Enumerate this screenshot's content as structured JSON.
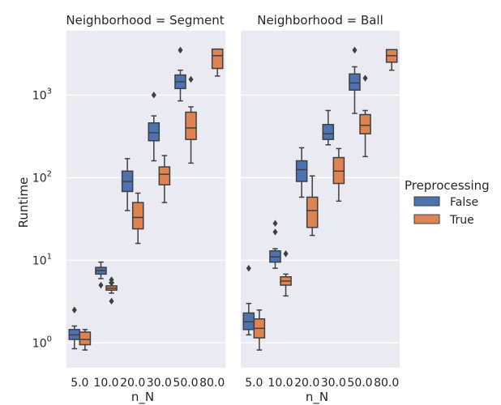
{
  "chart_data": {
    "type": "boxplot",
    "facet_titles": [
      "Neighborhood = Segment",
      "Neighborhood = Ball"
    ],
    "xlabel": "n_N",
    "ylabel": "Runtime",
    "yscale": "log",
    "ylim": [
      0.5,
      6000
    ],
    "y_tick_labels": [
      "10^0",
      "10^1",
      "10^2",
      "10^3"
    ],
    "categories": [
      "5.0",
      "10.0",
      "20.0",
      "30.0",
      "50.0",
      "80.0"
    ],
    "legend": {
      "title": "Preprocessing",
      "placement": "center-right",
      "entries": [
        {
          "label": "False",
          "color": "#4c72b0"
        },
        {
          "label": "True",
          "color": "#dd8452"
        }
      ]
    },
    "panels": [
      {
        "name": "Segment",
        "boxes": [
          {
            "category": "5.0",
            "group": "False",
            "whislo": 0.85,
            "q1": 1.1,
            "med": 1.25,
            "q3": 1.45,
            "whishi": 1.6,
            "fliers": [
              2.5
            ]
          },
          {
            "category": "5.0",
            "group": "True",
            "whislo": 0.82,
            "q1": 0.95,
            "med": 1.1,
            "q3": 1.35,
            "whishi": 1.45,
            "fliers": []
          },
          {
            "category": "10.0",
            "group": "False",
            "whislo": 6.0,
            "q1": 6.8,
            "med": 7.5,
            "q3": 8.2,
            "whishi": 9.5,
            "fliers": [
              5.0
            ]
          },
          {
            "category": "10.0",
            "group": "True",
            "whislo": 4.0,
            "q1": 4.35,
            "med": 4.6,
            "q3": 4.9,
            "whishi": 5.4,
            "fliers": [
              5.8,
              5.3,
              3.2
            ]
          },
          {
            "category": "20.0",
            "group": "False",
            "whislo": 40,
            "q1": 68,
            "med": 90,
            "q3": 120,
            "whishi": 170,
            "fliers": []
          },
          {
            "category": "20.0",
            "group": "True",
            "whislo": 16,
            "q1": 24,
            "med": 33,
            "q3": 50,
            "whishi": 65,
            "fliers": []
          },
          {
            "category": "30.0",
            "group": "False",
            "whislo": 160,
            "q1": 280,
            "med": 350,
            "q3": 460,
            "whishi": 560,
            "fliers": [
              1000
            ]
          },
          {
            "category": "30.0",
            "group": "True",
            "whislo": 50,
            "q1": 82,
            "med": 110,
            "q3": 135,
            "whishi": 185,
            "fliers": []
          },
          {
            "category": "50.0",
            "group": "False",
            "whislo": 850,
            "q1": 1200,
            "med": 1450,
            "q3": 1750,
            "whishi": 2000,
            "fliers": [
              3500
            ]
          },
          {
            "category": "50.0",
            "group": "True",
            "whislo": 150,
            "q1": 290,
            "med": 400,
            "q3": 620,
            "whishi": 720,
            "fliers": [
              1550
            ]
          },
          {
            "category": "80.0",
            "group": "True",
            "whislo": 1700,
            "q1": 2100,
            "med": 3000,
            "q3": 3600,
            "whishi": 3600,
            "fliers": []
          }
        ]
      },
      {
        "name": "Ball",
        "boxes": [
          {
            "category": "5.0",
            "group": "False",
            "whislo": 1.25,
            "q1": 1.45,
            "med": 1.8,
            "q3": 2.3,
            "whishi": 3.0,
            "fliers": [
              8.0
            ]
          },
          {
            "category": "5.0",
            "group": "True",
            "whislo": 0.82,
            "q1": 1.15,
            "med": 1.5,
            "q3": 1.95,
            "whishi": 2.5,
            "fliers": []
          },
          {
            "category": "10.0",
            "group": "False",
            "whislo": 8.0,
            "q1": 9.5,
            "med": 11,
            "q3": 13,
            "whishi": 13.8,
            "fliers": [
              28,
              22
            ]
          },
          {
            "category": "10.0",
            "group": "True",
            "whislo": 3.7,
            "q1": 5.0,
            "med": 5.6,
            "q3": 6.3,
            "whishi": 6.8,
            "fliers": [
              12
            ]
          },
          {
            "category": "20.0",
            "group": "False",
            "whislo": 58,
            "q1": 90,
            "med": 125,
            "q3": 160,
            "whishi": 230,
            "fliers": []
          },
          {
            "category": "20.0",
            "group": "True",
            "whislo": 20,
            "q1": 25,
            "med": 40,
            "q3": 58,
            "whishi": 105,
            "fliers": []
          },
          {
            "category": "30.0",
            "group": "False",
            "whislo": 250,
            "q1": 290,
            "med": 340,
            "q3": 440,
            "whishi": 650,
            "fliers": []
          },
          {
            "category": "30.0",
            "group": "True",
            "whislo": 52,
            "q1": 85,
            "med": 120,
            "q3": 175,
            "whishi": 225,
            "fliers": []
          },
          {
            "category": "50.0",
            "group": "False",
            "whislo": 600,
            "q1": 1150,
            "med": 1400,
            "q3": 1800,
            "whishi": 2200,
            "fliers": [
              3500
            ]
          },
          {
            "category": "50.0",
            "group": "True",
            "whislo": 180,
            "q1": 340,
            "med": 430,
            "q3": 580,
            "whishi": 650,
            "fliers": [
              1600
            ]
          },
          {
            "category": "80.0",
            "group": "True",
            "whislo": 2000,
            "q1": 2500,
            "med": 3000,
            "q3": 3550,
            "whishi": 3550,
            "fliers": []
          }
        ]
      }
    ]
  }
}
